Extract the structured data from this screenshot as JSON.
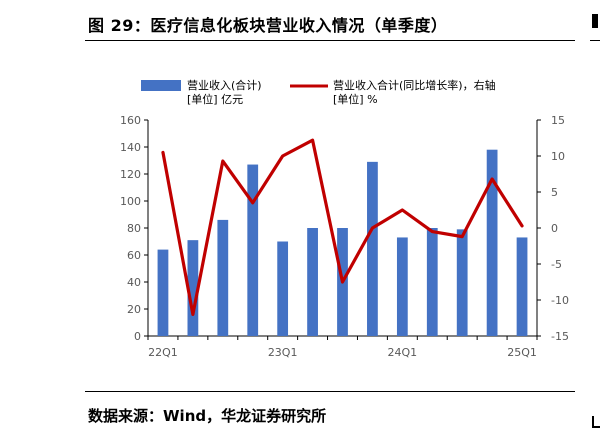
{
  "header": {
    "title": "图 29：医疗信息化板块营业收入情况（单季度）"
  },
  "footer": {
    "source": "数据来源：Wind，华龙证券研究所"
  },
  "colors": {
    "bar": "#4472C4",
    "line": "#C00000",
    "axis": "#000000",
    "tick": "#595959"
  },
  "chart_data": {
    "type": "bar",
    "legend": {
      "placement": "top",
      "bar_label": "营业收入(合计)",
      "bar_unit": "[单位] 亿元",
      "line_label": "营业收入合计(同比增长率)，右轴",
      "line_unit": "[单位] %"
    },
    "x_tick_labels": [
      "22Q1",
      "23Q1",
      "24Q1",
      "25Q1"
    ],
    "x_tick_indices": [
      0,
      4,
      8,
      12
    ],
    "y_left": {
      "ylim": [
        0,
        160
      ],
      "ticks": [
        "0",
        "20",
        "40",
        "60",
        "80",
        "100",
        "120",
        "140",
        "160"
      ]
    },
    "y_right": {
      "ylim": [
        -15,
        15
      ],
      "ticks": [
        "-15",
        "-10",
        "-5",
        "0",
        "5",
        "10",
        "15"
      ]
    },
    "grid": false,
    "series": [
      {
        "name": "营业收入(合计)",
        "type": "bar",
        "axis": "left",
        "values": [
          64,
          71,
          86,
          127,
          70,
          80,
          80,
          129,
          73,
          80,
          79,
          138,
          73
        ]
      },
      {
        "name": "营业收入合计(同比增长率)，右轴",
        "type": "line",
        "axis": "right",
        "values": [
          10.5,
          -12,
          9.3,
          3.5,
          10,
          12.2,
          -7.5,
          0,
          2.5,
          -0.5,
          -1.2,
          6.8,
          0.3
        ]
      }
    ]
  }
}
